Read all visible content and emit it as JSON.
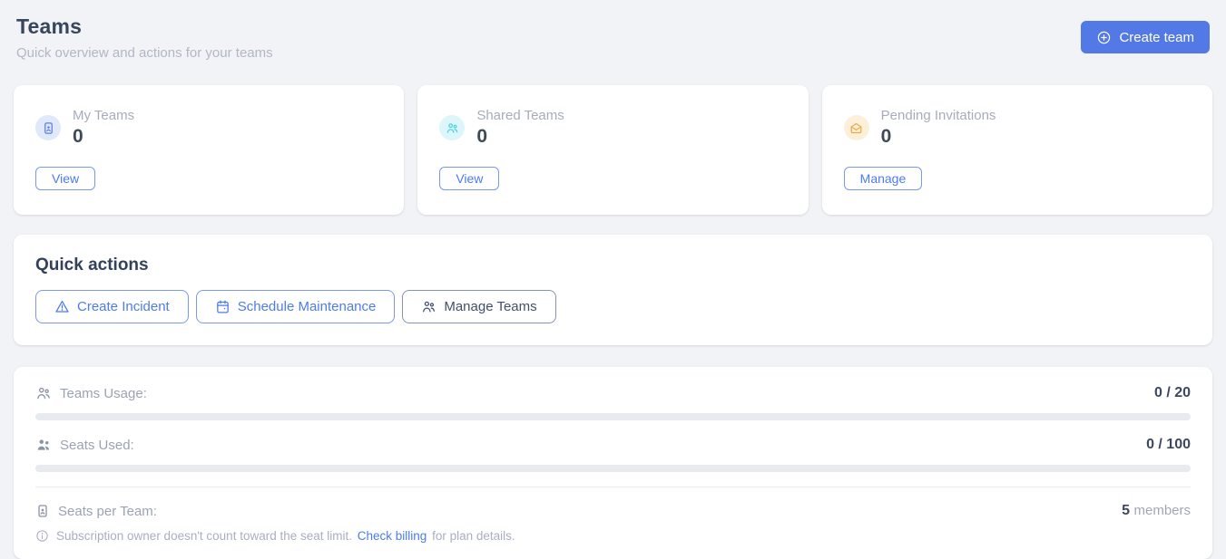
{
  "header": {
    "title": "Teams",
    "subtitle": "Quick overview and actions for your teams",
    "create_team_label": "Create team"
  },
  "stat_cards": [
    {
      "label": "My Teams",
      "value": "0",
      "action_label": "View",
      "icon": "id-badge-icon"
    },
    {
      "label": "Shared Teams",
      "value": "0",
      "action_label": "View",
      "icon": "users-icon"
    },
    {
      "label": "Pending Invitations",
      "value": "0",
      "action_label": "Manage",
      "icon": "mail-open-icon"
    }
  ],
  "quick_actions": {
    "heading": "Quick actions",
    "create_incident_label": "Create Incident",
    "schedule_maintenance_label": "Schedule Maintenance",
    "manage_teams_label": "Manage Teams"
  },
  "usage": {
    "teams_usage": {
      "label": "Teams Usage:",
      "value": "0 / 20",
      "used": 0,
      "limit": 20,
      "progress_percent": 0
    },
    "seats_used": {
      "label": "Seats Used:",
      "value": "0 / 100",
      "used": 0,
      "limit": 100,
      "progress_percent": 0
    },
    "seats_per_team": {
      "label": "Seats per Team:",
      "value": "5",
      "suffix": "members"
    },
    "note": {
      "prefix": "Subscription owner doesn't count toward the seat limit.",
      "link_label": "Check billing",
      "suffix": "for plan details."
    }
  },
  "colors": {
    "page_background": "#f1f3f6",
    "accent_blue": "#5379e6",
    "outline_button_blue": "#4d7bf0",
    "link_blue": "#4b7bf2",
    "my_teams_icon": "#5b7ce8",
    "my_teams_icon_bg": "#e0e8fb",
    "shared_teams_icon": "#45d0e0",
    "shared_teams_icon_bg": "#dcf6fa",
    "pending_invitations_icon": "#eda940",
    "pending_invitations_icon_bg": "#fdf0da",
    "progress_track": "#e7eaee"
  }
}
